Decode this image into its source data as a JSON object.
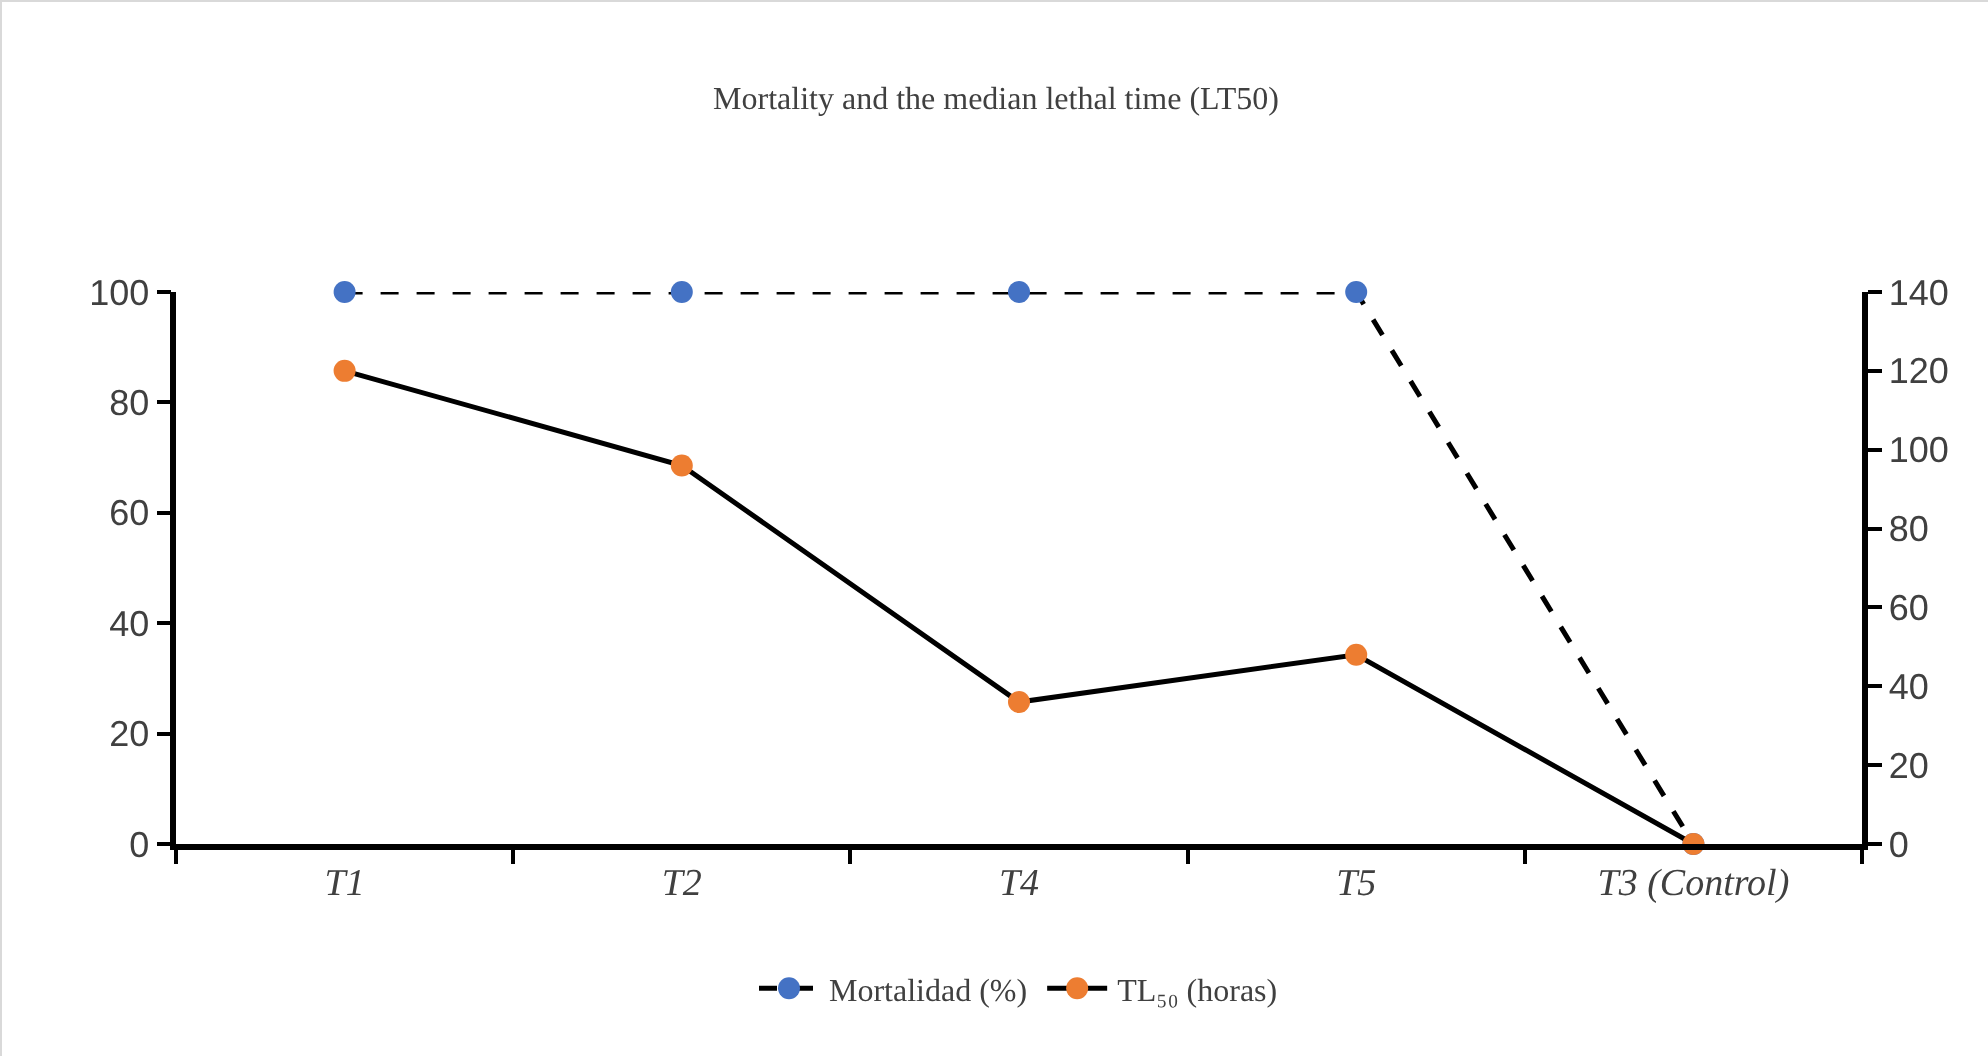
{
  "chart_data": {
    "type": "line",
    "title": "Mortality and the median lethal time (LT50)",
    "categories": [
      "T1",
      "T2",
      "T4",
      "T5",
      "T3 (Control)"
    ],
    "series": [
      {
        "name": "Mortalidad (%)",
        "color": "#4472c4",
        "values": [
          100,
          100,
          100,
          100,
          0
        ],
        "line_style": "dashed"
      },
      {
        "name": "TL₅₀ (horas)",
        "color": "#ed7d31",
        "values": [
          120,
          96,
          36,
          48,
          0
        ],
        "axis": "y2",
        "line_style": "solid"
      }
    ],
    "ylim": [
      0,
      100
    ],
    "yticks": [
      0,
      20,
      40,
      60,
      80,
      100
    ],
    "y2lim": [
      0,
      140
    ],
    "y2ticks": [
      0,
      20,
      40,
      60,
      80,
      100,
      120,
      140
    ],
    "grid": false,
    "legend": "bottom",
    "marker": "circle"
  }
}
